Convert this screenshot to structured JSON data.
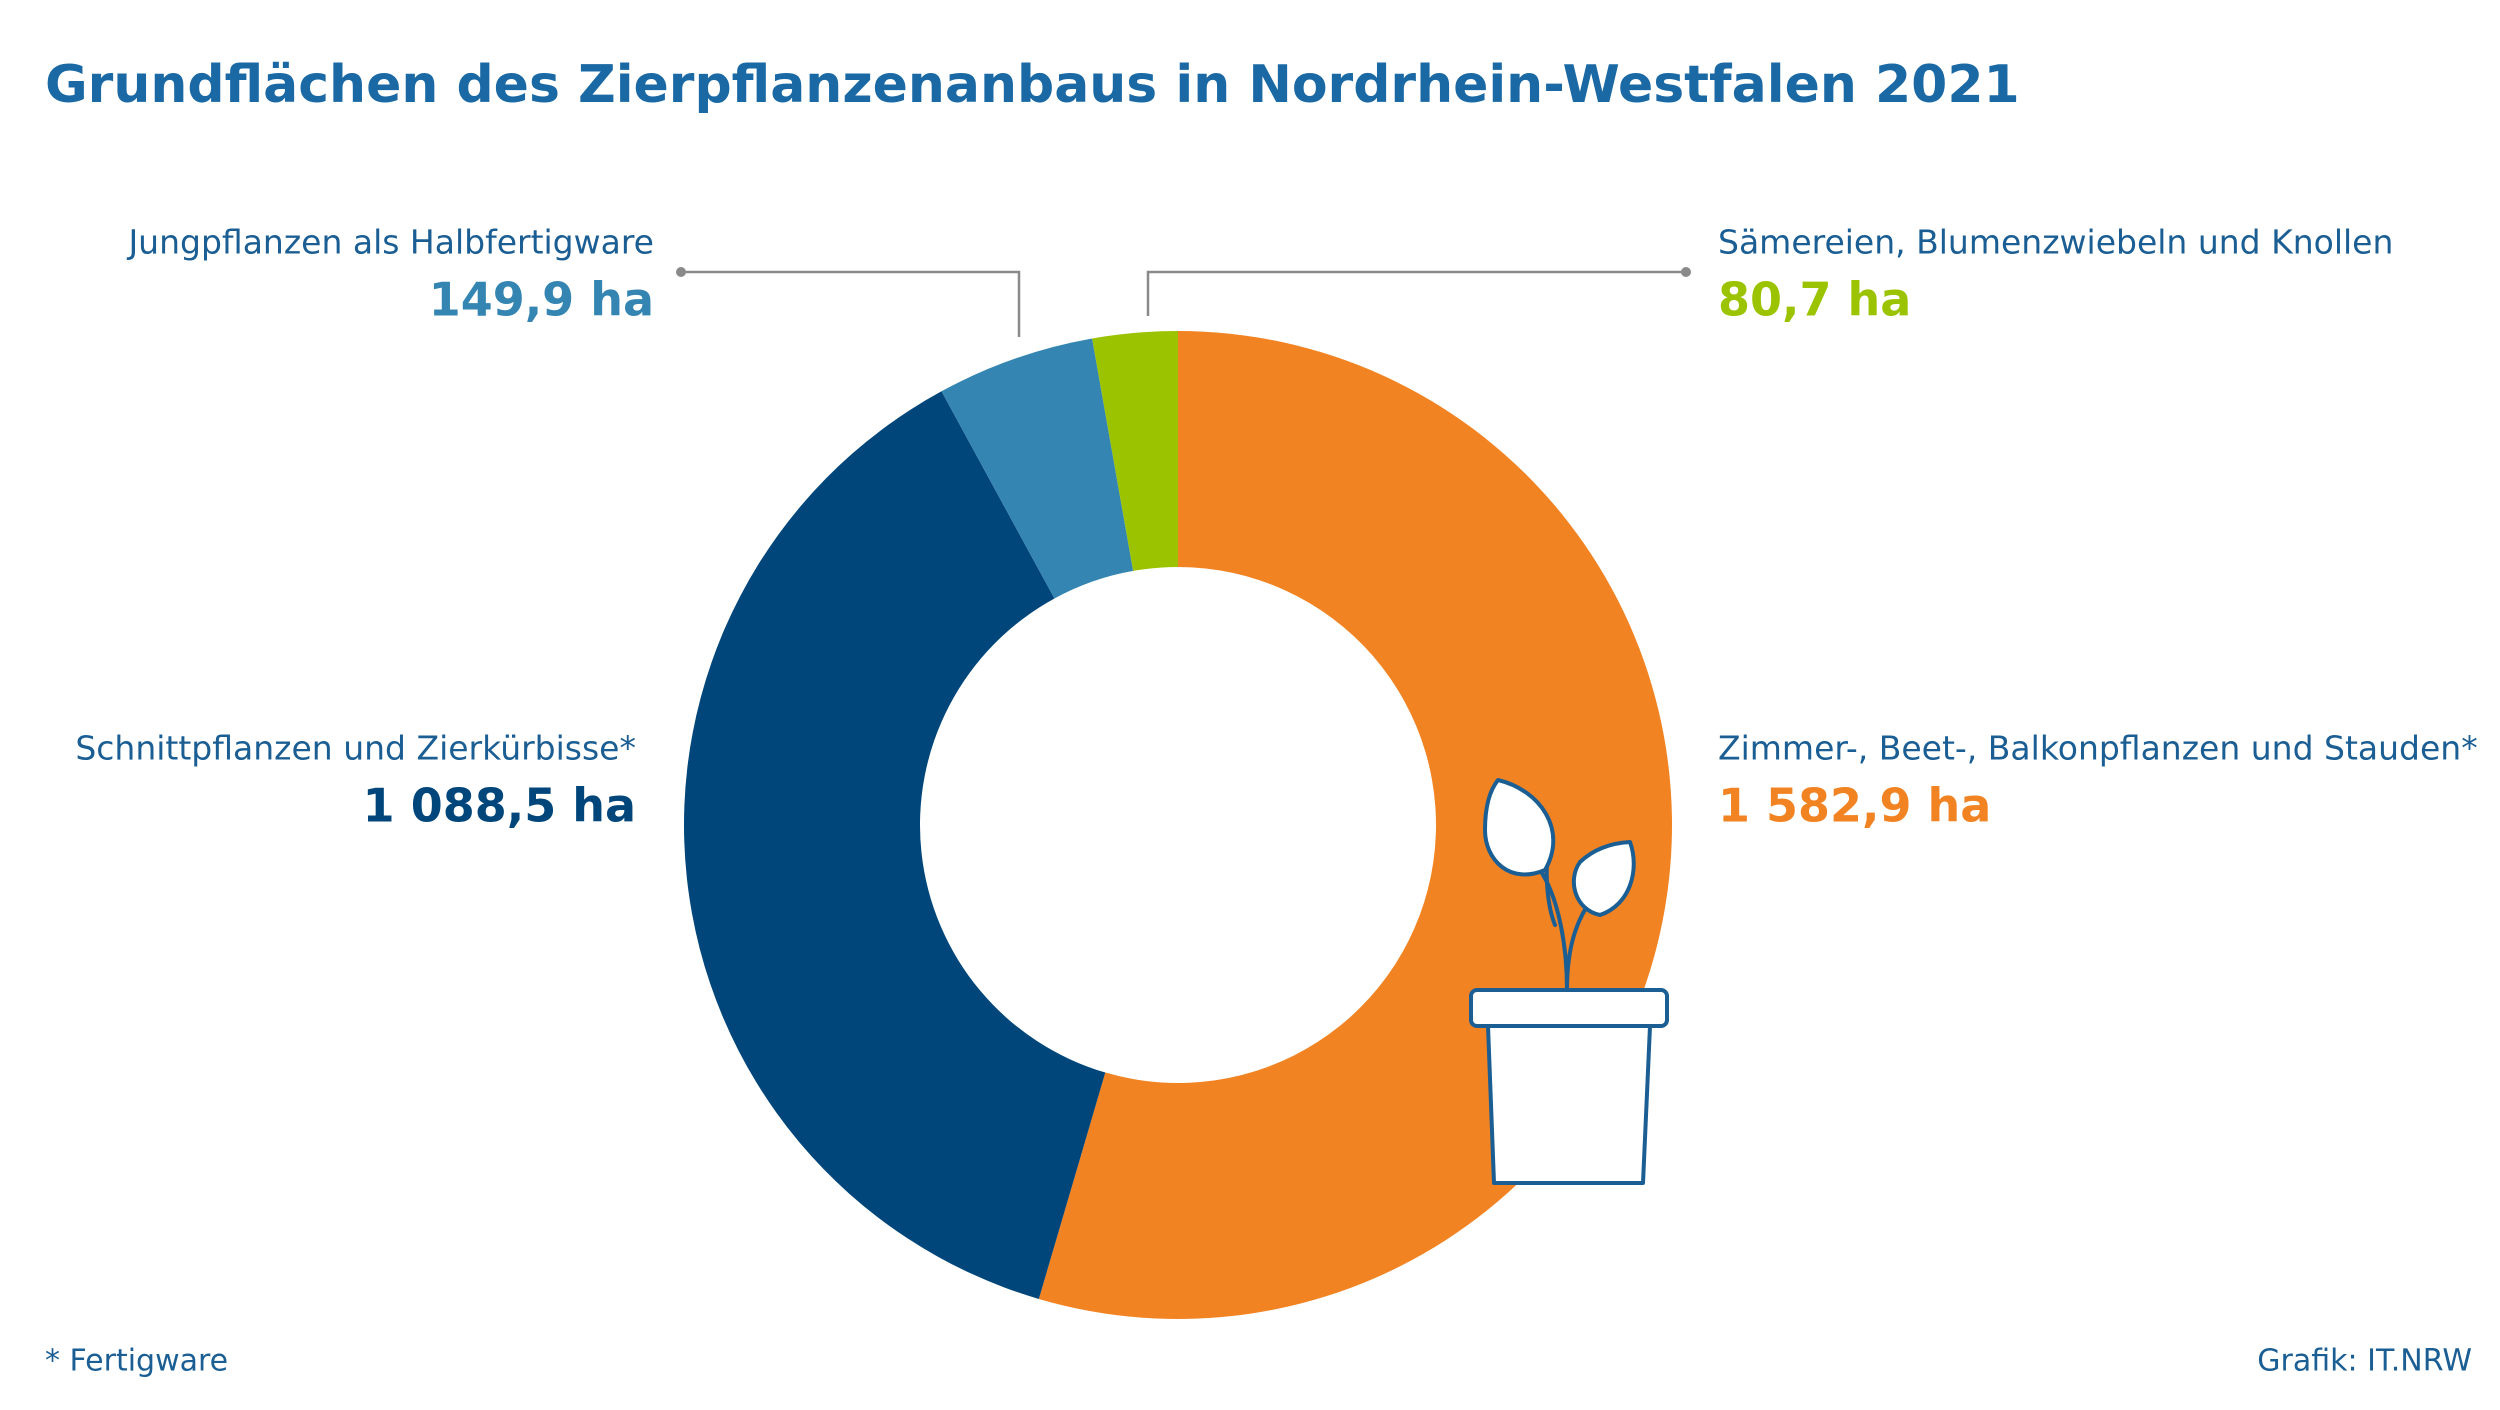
{
  "chart_data": {
    "type": "donut",
    "title": "Grundflächen des Zierpflanzenanbaus in Nordrhein-Westfalen 2021",
    "categories": [
      "Zimmer-, Beet-, Balkonpflanzen und Stauden*",
      "Schnittpflanzen und Zierkürbisse*",
      "Jungpflanzen als Halbfertigware",
      "Sämereien, Blumenzwiebeln und Knollen"
    ],
    "values": [
      1582.9,
      1088.5,
      149.9,
      80.7
    ],
    "value_labels": [
      "1 582,9 ha",
      "1 088,5 ha",
      "149,9 ha",
      "80,7 ha"
    ],
    "colors": [
      "#f28322",
      "#00467a",
      "#3585b3",
      "#9bc300"
    ],
    "footnote": "*  Fertigware",
    "source": "Grafik: IT.NRW"
  }
}
